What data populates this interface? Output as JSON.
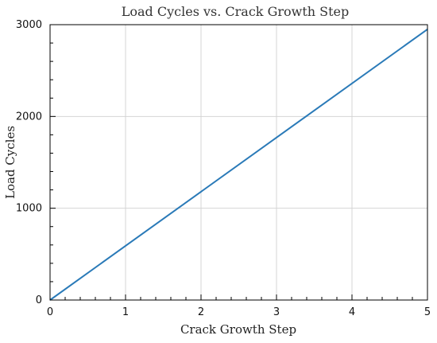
{
  "chart_data": {
    "type": "line",
    "title": "Load Cycles vs. Crack Growth Step",
    "xlabel": "Crack Growth Step",
    "ylabel": "Load Cycles",
    "xlim": [
      0,
      5
    ],
    "ylim": [
      0,
      3000
    ],
    "xticks": [
      "0",
      "1",
      "2",
      "3",
      "4",
      "5"
    ],
    "yticks": [
      "0",
      "1000",
      "2000",
      "3000"
    ],
    "grid": true,
    "legend": "none",
    "series": [
      {
        "color": "#2a7ab8",
        "x": [
          0,
          5
        ],
        "y": [
          0,
          2950
        ]
      }
    ]
  }
}
